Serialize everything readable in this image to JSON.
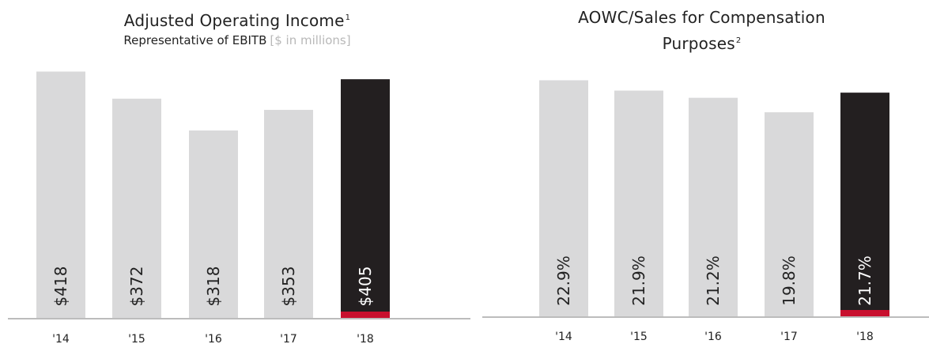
{
  "chart_data": [
    {
      "type": "bar",
      "title": "Adjusted Operating Income",
      "title_note": "1",
      "subtitle": "Representative of EBITB",
      "subtitle_unit": "[$ in millions]",
      "categories": [
        "'14",
        "'15",
        "'16",
        "'17",
        "'18"
      ],
      "values": [
        418,
        372,
        318,
        353,
        405
      ],
      "value_labels": [
        "$418",
        "$372",
        "$318",
        "$353",
        "$405"
      ],
      "ylim": [
        0,
        420
      ],
      "highlight_index": 4,
      "colors": {
        "bar": "#d9d9da",
        "highlight": "#231f20",
        "accent": "#c8102e",
        "baseline": "#bcbcbc"
      }
    },
    {
      "type": "bar",
      "title_line1": "AOWC/Sales for Compensation",
      "title_line2": "Purposes",
      "title_note": "2",
      "categories": [
        "'14",
        "'15",
        "'16",
        "'17",
        "'18"
      ],
      "values": [
        22.9,
        21.9,
        21.2,
        19.8,
        21.7
      ],
      "value_labels": [
        "22.9%",
        "21.9%",
        "21.2%",
        "19.8%",
        "21.7%"
      ],
      "ylim": [
        0,
        23.4
      ],
      "highlight_index": 4,
      "colors": {
        "bar": "#d9d9da",
        "highlight": "#231f20",
        "accent": "#c8102e",
        "baseline": "#bcbcbc"
      }
    }
  ]
}
